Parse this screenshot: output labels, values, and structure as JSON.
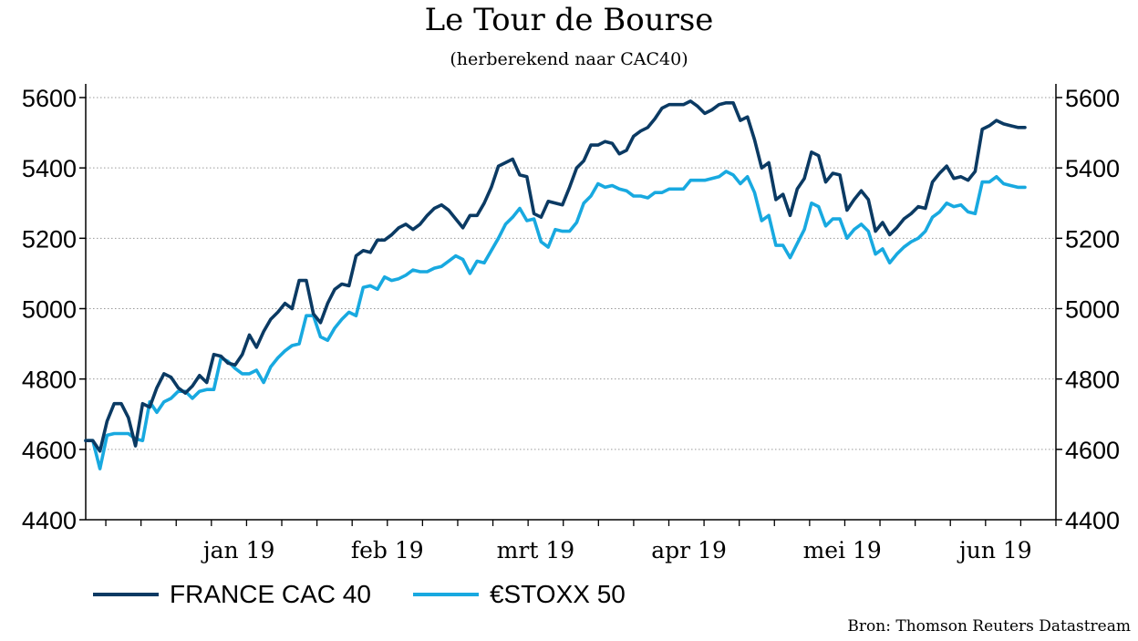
{
  "title": "Le Tour de Bourse",
  "subtitle": "(herberekend naar CAC40)",
  "source": "Bron: Thomson Reuters Datastream",
  "chart_data": {
    "type": "line",
    "title": "Le Tour de Bourse",
    "subtitle": "(herberekend naar CAC40)",
    "xlabel": "",
    "ylabel": "",
    "ylim": [
      4400,
      5600
    ],
    "yticks": [
      4400,
      4600,
      4800,
      5000,
      5200,
      5400,
      5600
    ],
    "x_axis": {
      "start": "2018-12-17",
      "end": "2019-06-28"
    },
    "x_tick_labels": [
      "jan 19",
      "feb 19",
      "mrt 19",
      "apr 19",
      "mei 19",
      "jun 19"
    ],
    "grid": "horizontal-dotted",
    "legend_position": "bottom-left",
    "series": [
      {
        "name": "FRANCE CAC 40",
        "color": "#0b3a63",
        "values": [
          4625,
          4625,
          4595,
          4680,
          4730,
          4730,
          4690,
          4610,
          4730,
          4720,
          4775,
          4815,
          4805,
          4775,
          4760,
          4780,
          4810,
          4790,
          4870,
          4865,
          4845,
          4840,
          4870,
          4925,
          4890,
          4935,
          4970,
          4990,
          5015,
          5000,
          5080,
          5080,
          4985,
          4960,
          5015,
          5055,
          5070,
          5065,
          5150,
          5165,
          5160,
          5195,
          5195,
          5210,
          5230,
          5240,
          5225,
          5240,
          5265,
          5285,
          5295,
          5280,
          5255,
          5230,
          5265,
          5265,
          5300,
          5345,
          5405,
          5415,
          5425,
          5380,
          5375,
          5270,
          5260,
          5305,
          5300,
          5295,
          5345,
          5400,
          5420,
          5465,
          5465,
          5475,
          5470,
          5440,
          5450,
          5490,
          5505,
          5515,
          5540,
          5570,
          5580,
          5580,
          5580,
          5590,
          5575,
          5555,
          5565,
          5580,
          5585,
          5585,
          5535,
          5545,
          5480,
          5400,
          5415,
          5310,
          5325,
          5265,
          5340,
          5370,
          5445,
          5435,
          5360,
          5385,
          5380,
          5280,
          5310,
          5335,
          5310,
          5220,
          5245,
          5210,
          5230,
          5255,
          5270,
          5290,
          5285,
          5360,
          5385,
          5405,
          5370,
          5375,
          5365,
          5390,
          5510,
          5520,
          5535,
          5525,
          5520,
          5515,
          5515
        ]
      },
      {
        "name": "€STOXX 50",
        "color": "#18a9e0",
        "values": [
          4625,
          4625,
          4545,
          4640,
          4645,
          4645,
          4645,
          4630,
          4625,
          4735,
          4705,
          4735,
          4745,
          4765,
          4765,
          4745,
          4765,
          4770,
          4770,
          4860,
          4850,
          4830,
          4815,
          4815,
          4825,
          4790,
          4835,
          4860,
          4880,
          4895,
          4900,
          4980,
          4980,
          4920,
          4910,
          4945,
          4970,
          4990,
          4980,
          5060,
          5065,
          5055,
          5090,
          5080,
          5085,
          5095,
          5110,
          5105,
          5105,
          5115,
          5120,
          5135,
          5150,
          5140,
          5100,
          5135,
          5130,
          5165,
          5200,
          5240,
          5260,
          5285,
          5250,
          5255,
          5190,
          5175,
          5225,
          5220,
          5220,
          5245,
          5300,
          5320,
          5355,
          5345,
          5350,
          5340,
          5335,
          5320,
          5320,
          5315,
          5330,
          5330,
          5340,
          5340,
          5340,
          5365,
          5365,
          5365,
          5370,
          5375,
          5390,
          5380,
          5355,
          5375,
          5330,
          5250,
          5265,
          5180,
          5180,
          5145,
          5185,
          5225,
          5300,
          5290,
          5235,
          5255,
          5255,
          5200,
          5225,
          5240,
          5220,
          5155,
          5170,
          5130,
          5155,
          5175,
          5190,
          5200,
          5220,
          5260,
          5275,
          5300,
          5290,
          5295,
          5275,
          5270,
          5360,
          5360,
          5375,
          5355,
          5350,
          5345,
          5345
        ]
      }
    ]
  },
  "legend": {
    "items": [
      {
        "label": "FRANCE CAC 40",
        "color": "#0b3a63"
      },
      {
        "label": "€STOXX 50",
        "color": "#18a9e0"
      }
    ]
  }
}
